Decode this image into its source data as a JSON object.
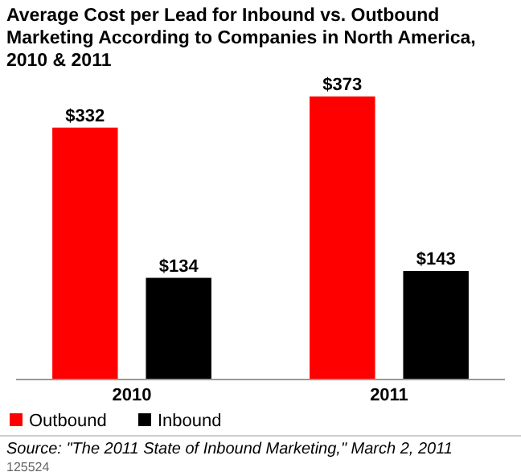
{
  "chart_data": {
    "type": "bar",
    "title": "Average Cost per Lead for Inbound vs. Outbound Marketing According to Companies in North America, 2010 & 2011",
    "categories": [
      "2010",
      "2011"
    ],
    "series": [
      {
        "name": "Outbound",
        "color": "#ff0000",
        "values": [
          332,
          373
        ],
        "value_labels": [
          "$332",
          "$373"
        ]
      },
      {
        "name": "Inbound",
        "color": "#000000",
        "values": [
          134,
          143
        ],
        "value_labels": [
          "$134",
          "$143"
        ]
      }
    ],
    "legend": "bottom left",
    "annotations": [
      "Source: \"The 2011 State of Inbound Marketing,\" March 2, 2011",
      "125524"
    ]
  }
}
